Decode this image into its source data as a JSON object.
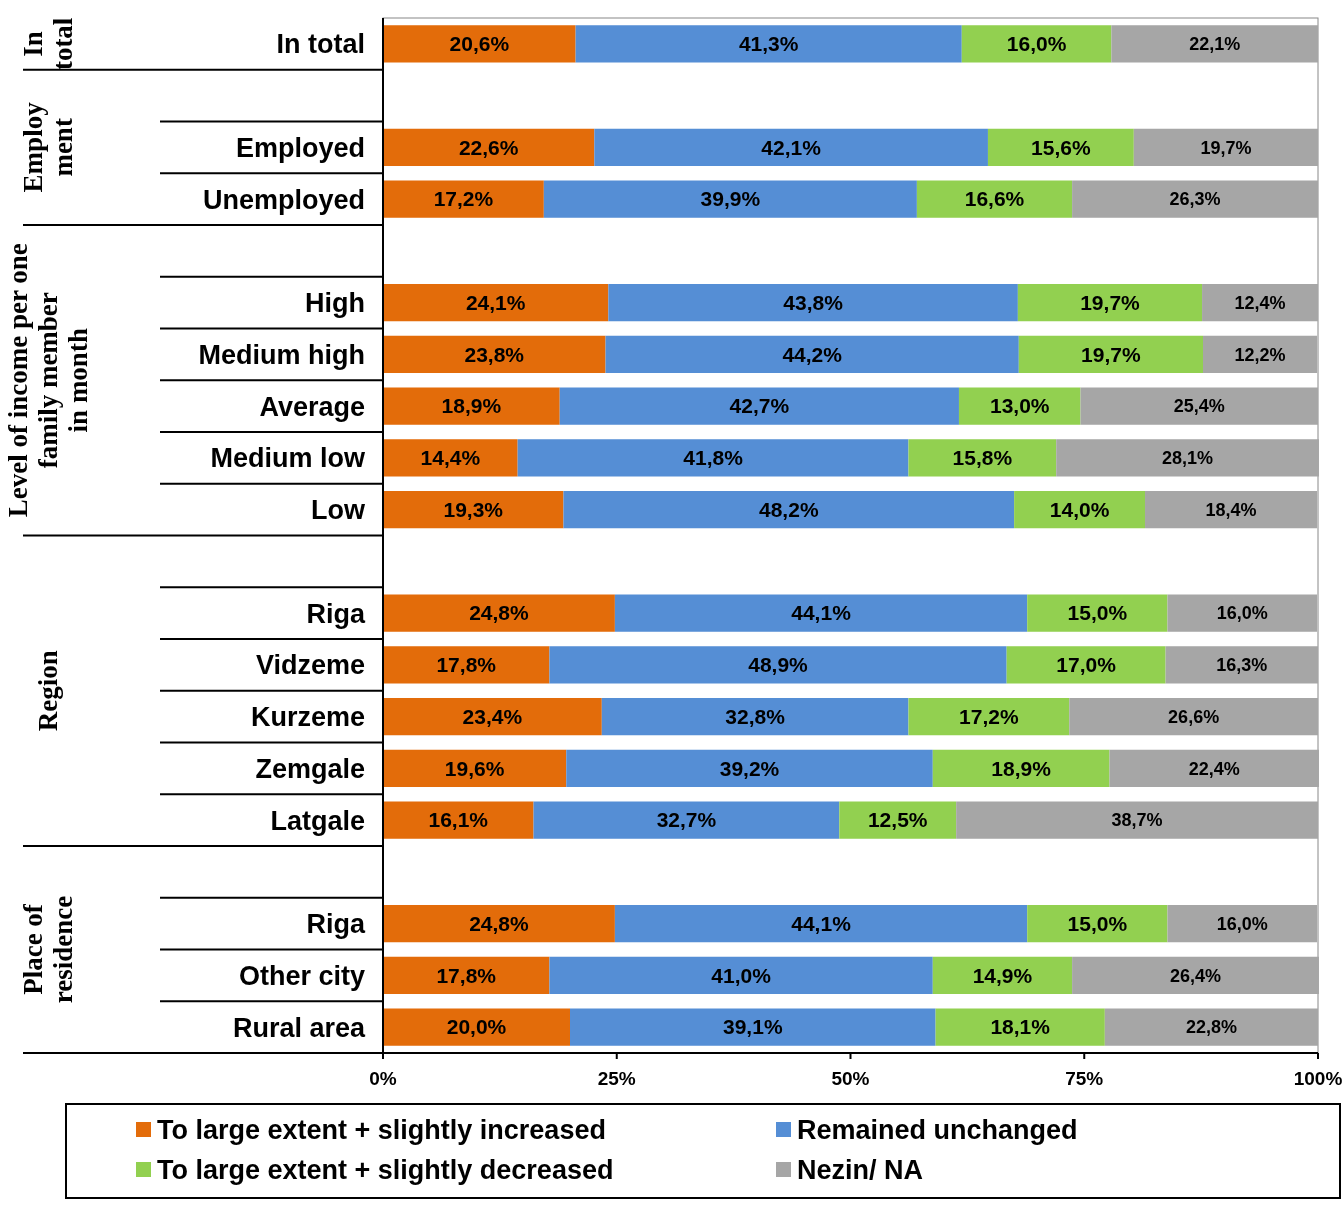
{
  "chart_data": {
    "type": "bar",
    "orientation": "horizontal",
    "stacked": true,
    "categories": [
      "In total",
      null,
      "Employed",
      "Unemployed",
      null,
      "High",
      "Medium high",
      "Average",
      "Medium low",
      "Low",
      null,
      "Riga",
      "Vidzeme",
      "Kurzeme",
      "Zemgale",
      "Latgale",
      null,
      "Riga",
      "Other city",
      "Rural area"
    ],
    "series": [
      {
        "name": "To large extent + slightly increased",
        "color": "#e36c0a",
        "values": [
          20.6,
          null,
          22.6,
          17.2,
          null,
          24.1,
          23.8,
          18.9,
          14.4,
          19.3,
          null,
          24.8,
          17.8,
          23.4,
          19.6,
          16.1,
          null,
          24.8,
          17.8,
          20.0
        ],
        "value_labels": [
          "20,6%",
          null,
          "22,6%",
          "17,2%",
          null,
          "24,1%",
          "23,8%",
          "18,9%",
          "14,4%",
          "19,3%",
          null,
          "24,8%",
          "17,8%",
          "23,4%",
          "19,6%",
          "16,1%",
          null,
          "24,8%",
          "17,8%",
          "20,0%"
        ]
      },
      {
        "name": "Remained unchanged",
        "color": "#558ed5",
        "values": [
          41.3,
          null,
          42.1,
          39.9,
          null,
          43.8,
          44.2,
          42.7,
          41.8,
          48.2,
          null,
          44.1,
          48.9,
          32.8,
          39.2,
          32.7,
          null,
          44.1,
          41.0,
          39.1
        ],
        "value_labels": [
          "41,3%",
          null,
          "42,1%",
          "39,9%",
          null,
          "43,8%",
          "44,2%",
          "42,7%",
          "41,8%",
          "48,2%",
          null,
          "44,1%",
          "48,9%",
          "32,8%",
          "39,2%",
          "32,7%",
          null,
          "44,1%",
          "41,0%",
          "39,1%"
        ]
      },
      {
        "name": "To large extent + slightly decreased",
        "color": "#92d050",
        "values": [
          16.0,
          null,
          15.6,
          16.6,
          null,
          19.7,
          19.7,
          13.0,
          15.8,
          14.0,
          null,
          15.0,
          17.0,
          17.2,
          18.9,
          12.5,
          null,
          15.0,
          14.9,
          18.1
        ],
        "value_labels": [
          "16,0%",
          null,
          "15,6%",
          "16,6%",
          null,
          "19,7%",
          "19,7%",
          "13,0%",
          "15,8%",
          "14,0%",
          null,
          "15,0%",
          "17,0%",
          "17,2%",
          "18,9%",
          "12,5%",
          null,
          "15,0%",
          "14,9%",
          "18,1%"
        ]
      },
      {
        "name": "Nezin/ NA",
        "color": "#a6a6a6",
        "values": [
          22.1,
          null,
          19.7,
          26.3,
          null,
          12.4,
          12.2,
          25.4,
          28.1,
          18.4,
          null,
          16.0,
          16.3,
          26.6,
          22.4,
          38.7,
          null,
          16.0,
          26.4,
          22.8
        ],
        "value_labels": [
          "22,1%",
          null,
          "19,7%",
          "26,3%",
          null,
          "12,4%",
          "12,2%",
          "25,4%",
          "28,1%",
          "18,4%",
          null,
          "16,0%",
          "16,3%",
          "26,6%",
          "22,4%",
          "38,7%",
          null,
          "16,0%",
          "26,4%",
          "22,8%"
        ]
      }
    ],
    "xlim": [
      0,
      100
    ],
    "xticks": [
      {
        "value": 0,
        "label": "0%"
      },
      {
        "value": 25,
        "label": "25%"
      },
      {
        "value": 50,
        "label": "50%"
      },
      {
        "value": 75,
        "label": "75%"
      },
      {
        "value": 100,
        "label": "100%"
      }
    ],
    "legend": "bottom",
    "grid": false,
    "annotations": [
      "In\ntotal",
      "Employ\nment",
      "Level of income per one\nfamily member\nin month",
      "Region",
      "Place of\nresidence"
    ]
  }
}
